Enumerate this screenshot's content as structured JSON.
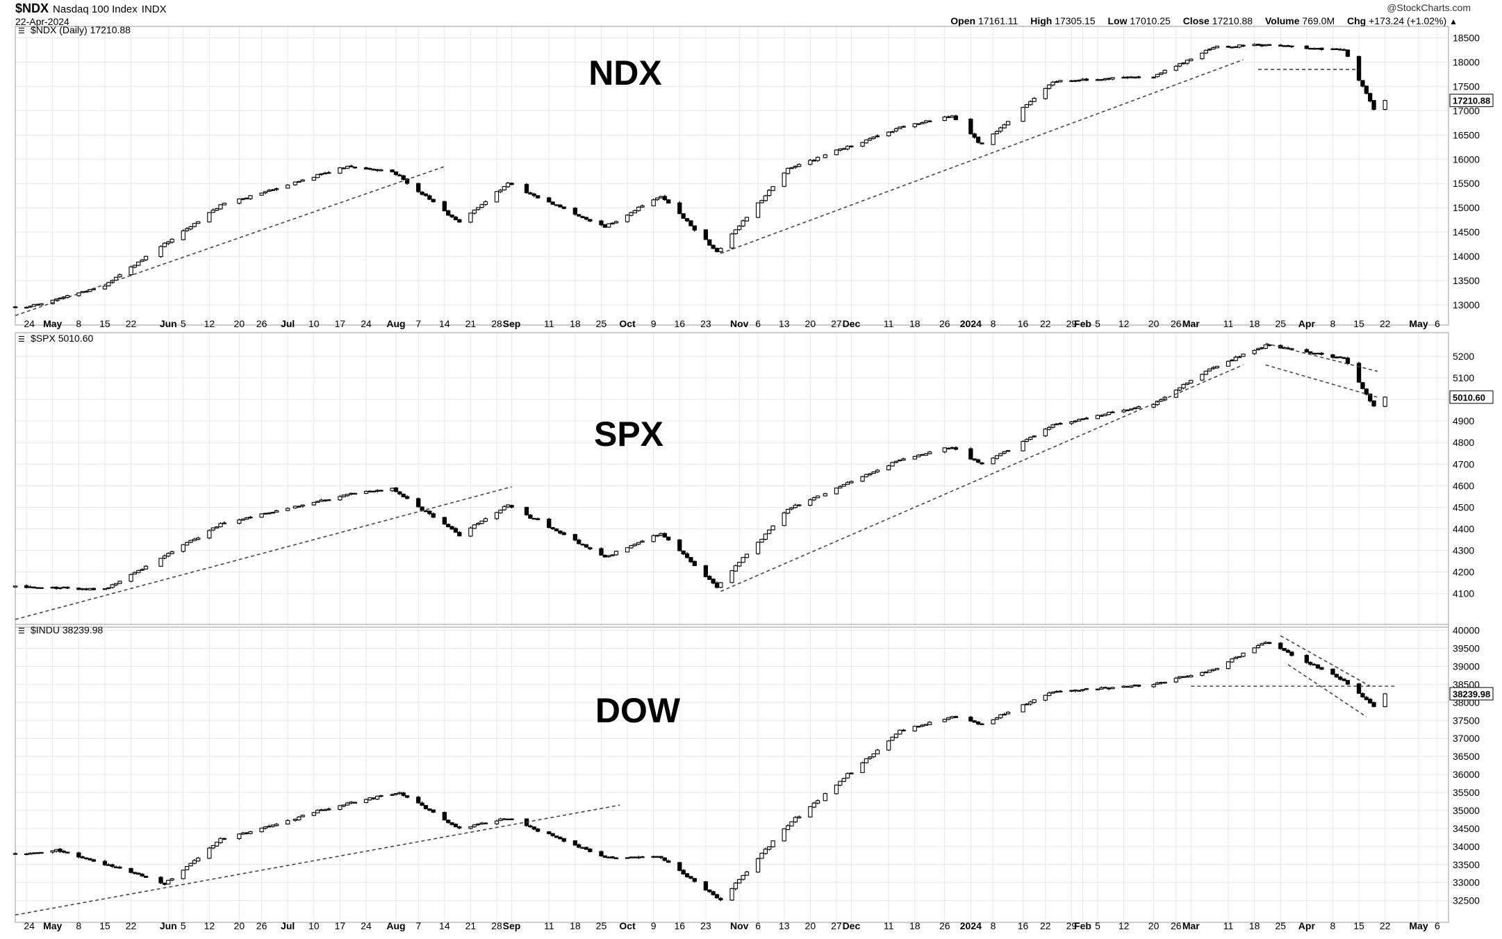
{
  "header": {
    "symbol": "$NDX",
    "name": "Nasdaq 100 Index",
    "exchange": "INDX",
    "date": "22-Apr-2024",
    "brand": "@StockCharts.com",
    "quote": {
      "open_label": "Open",
      "open": "17161.11",
      "high_label": "High",
      "high": "17305.15",
      "low_label": "Low",
      "low": "17010.25",
      "close_label": "Close",
      "close": "17210.88",
      "volume_label": "Volume",
      "volume": "769.0M",
      "chg_label": "Chg",
      "chg": "+173.24 (+1.02%)"
    }
  },
  "chart_data": [
    {
      "type": "candlestick",
      "panel_label": "$NDX (Daily) 17210.88",
      "title": "NDX",
      "last_value": "17210.88",
      "ylim": [
        12700,
        18650
      ],
      "yticks": [
        13000,
        13500,
        14000,
        14500,
        15000,
        15500,
        16000,
        16500,
        17000,
        17500,
        18000,
        18500
      ],
      "x_tick_labels": [
        "24",
        "May",
        "8",
        "15",
        "22",
        "Jun",
        "5",
        "12",
        "20",
        "26",
        "Jul",
        "10",
        "17",
        "24",
        "Aug",
        "7",
        "14",
        "21",
        "28",
        "Sep",
        "11",
        "18",
        "25",
        "Oct",
        "9",
        "16",
        "23",
        "Nov",
        "6",
        "13",
        "20",
        "27",
        "Dec",
        "11",
        "18",
        "26",
        "2024",
        "8",
        "16",
        "22",
        "29",
        "Feb",
        "5",
        "12",
        "20",
        "26",
        "Mar",
        "11",
        "18",
        "25",
        "Apr",
        "8",
        "15",
        "22",
        "May",
        "6"
      ],
      "anchors": [
        [
          "2023-04-24",
          12950
        ],
        [
          "2023-05-15",
          13400
        ],
        [
          "2023-06-15",
          15050
        ],
        [
          "2023-07-19",
          15850
        ],
        [
          "2023-07-31",
          15750
        ],
        [
          "2023-08-18",
          14700
        ],
        [
          "2023-08-31",
          15500
        ],
        [
          "2023-09-26",
          14600
        ],
        [
          "2023-10-11",
          15250
        ],
        [
          "2023-10-26",
          14100
        ],
        [
          "2023-11-14",
          15800
        ],
        [
          "2023-12-14",
          16650
        ],
        [
          "2023-12-28",
          16900
        ],
        [
          "2024-01-05",
          16300
        ],
        [
          "2024-01-24",
          17600
        ],
        [
          "2024-02-20",
          17700
        ],
        [
          "2024-03-07",
          18300
        ],
        [
          "2024-03-21",
          18350
        ],
        [
          "2024-04-11",
          18250
        ],
        [
          "2024-04-19",
          17037
        ],
        [
          "2024-04-22",
          17210.88
        ]
      ],
      "trendlines": [
        [
          "2023-04-21",
          12780,
          "2023-08-14",
          15850
        ],
        [
          "2023-10-27",
          14060,
          "2024-03-15",
          18050
        ],
        [
          "2024-03-19",
          17850,
          "2024-04-15",
          17850
        ]
      ]
    },
    {
      "type": "candlestick",
      "panel_label": "$SPX 5010.60",
      "title": "SPX",
      "last_value": "5010.60",
      "ylim": [
        3970,
        5290
      ],
      "yticks": [
        4100,
        4200,
        4300,
        4400,
        4500,
        4600,
        4700,
        4800,
        4900,
        5000,
        5100,
        5200
      ],
      "x_tick_labels": [],
      "anchors": [
        [
          "2023-04-24",
          4130
        ],
        [
          "2023-05-15",
          4120
        ],
        [
          "2023-06-15",
          4420
        ],
        [
          "2023-07-19",
          4560
        ],
        [
          "2023-07-31",
          4590
        ],
        [
          "2023-08-18",
          4370
        ],
        [
          "2023-08-31",
          4510
        ],
        [
          "2023-09-26",
          4270
        ],
        [
          "2023-10-11",
          4380
        ],
        [
          "2023-10-26",
          4130
        ],
        [
          "2023-11-14",
          4490
        ],
        [
          "2023-12-14",
          4720
        ],
        [
          "2023-12-28",
          4780
        ],
        [
          "2024-01-05",
          4700
        ],
        [
          "2024-01-24",
          4880
        ],
        [
          "2024-02-20",
          4980
        ],
        [
          "2024-03-07",
          5150
        ],
        [
          "2024-03-21",
          5250
        ],
        [
          "2024-04-11",
          5190
        ],
        [
          "2024-04-19",
          4967
        ],
        [
          "2024-04-22",
          5010.6
        ]
      ],
      "trendlines": [
        [
          "2023-04-21",
          3980,
          "2023-09-01",
          4595
        ],
        [
          "2023-10-27",
          4110,
          "2024-03-15",
          5160
        ],
        [
          "2024-03-21",
          5260,
          "2024-04-20",
          5130
        ],
        [
          "2024-03-21",
          5160,
          "2024-04-20",
          5010
        ]
      ]
    },
    {
      "type": "candlestick",
      "panel_label": "$INDU 38239.98",
      "title": "DOW",
      "last_value": "38239.98",
      "ylim": [
        32050,
        40050
      ],
      "yticks": [
        32500,
        33000,
        33500,
        34000,
        34500,
        35000,
        35500,
        36000,
        36500,
        37000,
        37500,
        38000,
        38500,
        39000,
        39500,
        40000
      ],
      "x_tick_labels": [
        "24",
        "May",
        "8",
        "15",
        "22",
        "Jun",
        "5",
        "12",
        "20",
        "26",
        "Jul",
        "10",
        "17",
        "24",
        "Aug",
        "7",
        "14",
        "21",
        "28",
        "Sep",
        "11",
        "18",
        "25",
        "Oct",
        "9",
        "16",
        "23",
        "Nov",
        "6",
        "13",
        "20",
        "27",
        "Dec",
        "11",
        "18",
        "26",
        "2024",
        "8",
        "16",
        "22",
        "29",
        "Feb",
        "5",
        "12",
        "20",
        "26",
        "Mar",
        "11",
        "18",
        "25",
        "Apr",
        "8",
        "15",
        "22",
        "May",
        "6"
      ],
      "anchors": [
        [
          "2023-04-24",
          33800
        ],
        [
          "2023-05-02",
          33900
        ],
        [
          "2023-05-22",
          33300
        ],
        [
          "2023-05-31",
          32950
        ],
        [
          "2023-06-15",
          34200
        ],
        [
          "2023-07-19",
          35200
        ],
        [
          "2023-08-02",
          35500
        ],
        [
          "2023-08-18",
          34500
        ],
        [
          "2023-08-31",
          34800
        ],
        [
          "2023-09-26",
          33700
        ],
        [
          "2023-10-11",
          33700
        ],
        [
          "2023-10-27",
          32500
        ],
        [
          "2023-11-14",
          34600
        ],
        [
          "2023-12-14",
          37200
        ],
        [
          "2023-12-28",
          37600
        ],
        [
          "2024-01-05",
          37400
        ],
        [
          "2024-01-24",
          38300
        ],
        [
          "2024-02-20",
          38500
        ],
        [
          "2024-03-07",
          38900
        ],
        [
          "2024-03-21",
          39700
        ],
        [
          "2024-04-11",
          38600
        ],
        [
          "2024-04-19",
          37900
        ],
        [
          "2024-04-22",
          38239.98
        ]
      ],
      "trendlines": [
        [
          "2023-04-21",
          32100,
          "2023-09-30",
          35150
        ],
        [
          "2024-03-01",
          38450,
          "2024-04-25",
          38450
        ],
        [
          "2024-03-25",
          39850,
          "2024-04-18",
          38450
        ],
        [
          "2024-03-27",
          39050,
          "2024-04-17",
          37600
        ]
      ]
    }
  ],
  "colors": {
    "candle": "#000000",
    "grid": "#e6e6e6",
    "trendline": "#444444",
    "background": "#ffffff"
  }
}
